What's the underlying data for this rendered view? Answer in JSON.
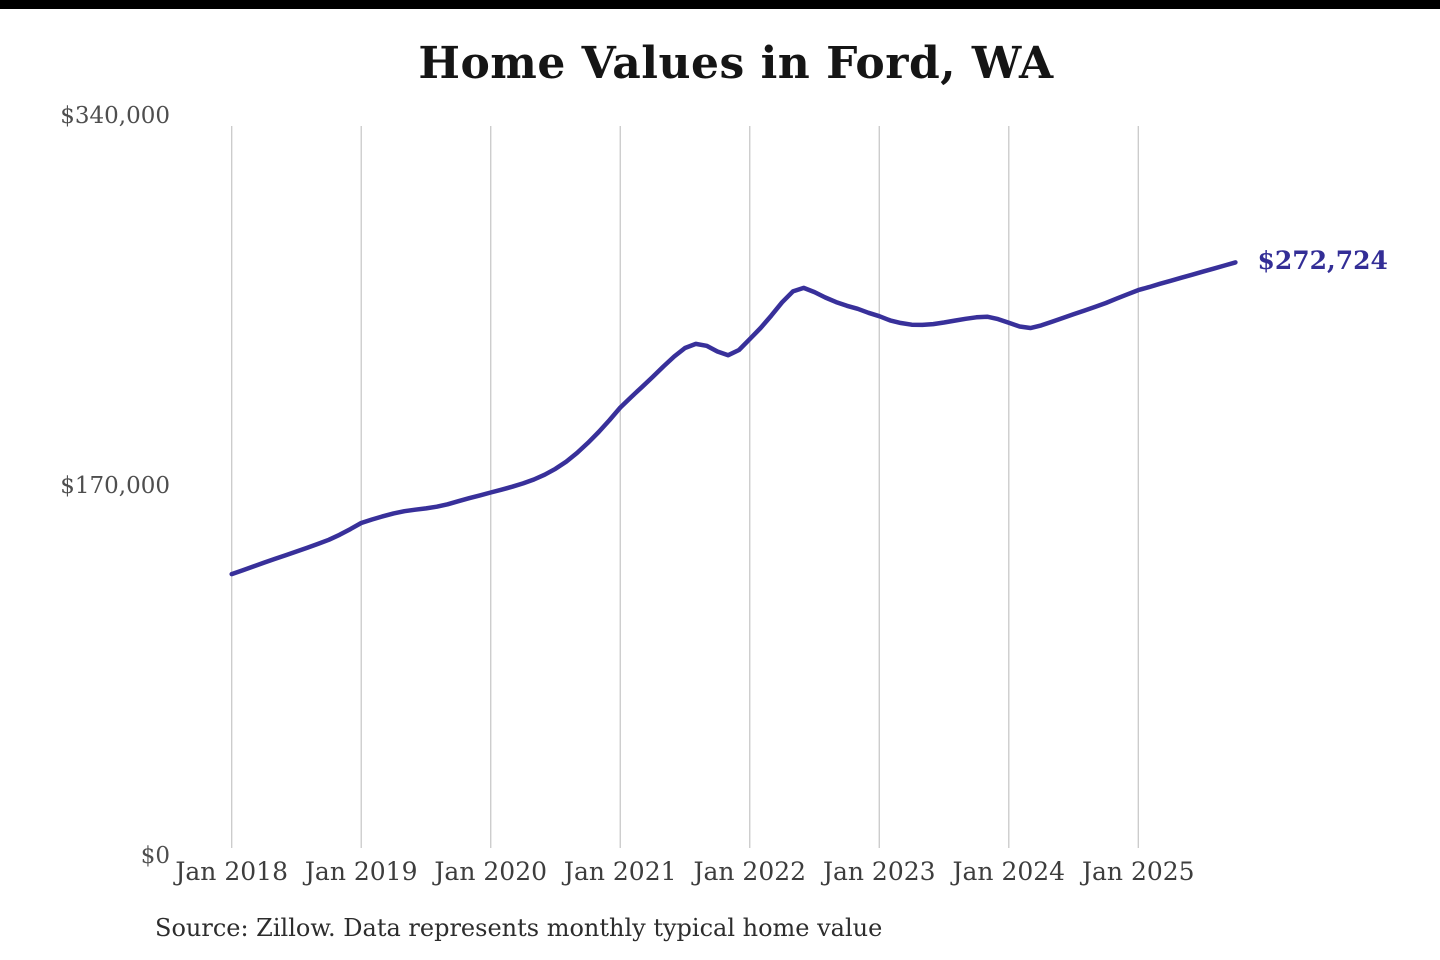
{
  "page": {
    "title": "Home Values in Ford, WA",
    "source_note": "Source: Zillow. Data represents monthly typical home value"
  },
  "colors": {
    "line": "#38309a",
    "end_label": "#332e96",
    "grid": "#c9c9c9",
    "title": "#151515",
    "axis_text": "#4e4e4e",
    "source_text": "#2d2d2d",
    "top_bar": "#000000",
    "background": "#ffffff"
  },
  "chart_data": {
    "type": "line",
    "title": "Home Values in Ford, WA",
    "series_name": "Monthly typical home value",
    "legend": "none",
    "grid": "vertical-only",
    "ylim": [
      0,
      340000
    ],
    "y_ticks": [
      0,
      170000,
      340000
    ],
    "y_tick_labels": [
      "$0",
      "$170,000",
      "$340,000"
    ],
    "x_tick_labels": [
      "Jan 2018",
      "Jan 2019",
      "Jan 2020",
      "Jan 2021",
      "Jan 2022",
      "Jan 2023",
      "Jan 2024",
      "Jan 2025"
    ],
    "months_per_tick": 12,
    "x": [
      "2018-01",
      "2018-02",
      "2018-03",
      "2018-04",
      "2018-05",
      "2018-06",
      "2018-07",
      "2018-08",
      "2018-09",
      "2018-10",
      "2018-11",
      "2018-12",
      "2019-01",
      "2019-02",
      "2019-03",
      "2019-04",
      "2019-05",
      "2019-06",
      "2019-07",
      "2019-08",
      "2019-09",
      "2019-10",
      "2019-11",
      "2019-12",
      "2020-01",
      "2020-02",
      "2020-03",
      "2020-04",
      "2020-05",
      "2020-06",
      "2020-07",
      "2020-08",
      "2020-09",
      "2020-10",
      "2020-11",
      "2020-12",
      "2021-01",
      "2021-02",
      "2021-03",
      "2021-04",
      "2021-05",
      "2021-06",
      "2021-07",
      "2021-08",
      "2021-09",
      "2021-10",
      "2021-11",
      "2021-12",
      "2022-01",
      "2022-02",
      "2022-03",
      "2022-04",
      "2022-05",
      "2022-06",
      "2022-07",
      "2022-08",
      "2022-09",
      "2022-10",
      "2022-11",
      "2022-12",
      "2023-01",
      "2023-02",
      "2023-03",
      "2023-04",
      "2023-05",
      "2023-06",
      "2023-07",
      "2023-08",
      "2023-09",
      "2023-10",
      "2023-11",
      "2023-12",
      "2024-01",
      "2024-02",
      "2024-03",
      "2024-04",
      "2024-05",
      "2024-06",
      "2024-07",
      "2024-08",
      "2024-09",
      "2024-10",
      "2024-11",
      "2024-12",
      "2025-01",
      "2025-02",
      "2025-03",
      "2025-04",
      "2025-05",
      "2025-06",
      "2025-07",
      "2025-08",
      "2025-09",
      "2025-10"
    ],
    "values": [
      129500,
      131200,
      133000,
      134800,
      136500,
      138200,
      139900,
      141600,
      143400,
      145300,
      147600,
      150200,
      153000,
      154600,
      156100,
      157400,
      158400,
      159100,
      159700,
      160500,
      161600,
      163000,
      164400,
      165700,
      167000,
      168300,
      169700,
      171200,
      173000,
      175200,
      177900,
      181200,
      185200,
      189800,
      194800,
      200300,
      206000,
      210800,
      215400,
      220100,
      224900,
      229500,
      233400,
      235300,
      234400,
      231800,
      230100,
      232500,
      237500,
      242600,
      248300,
      254400,
      259400,
      261000,
      259100,
      256600,
      254500,
      252800,
      251400,
      249600,
      248000,
      246100,
      244900,
      244100,
      244000,
      244400,
      245100,
      246000,
      246800,
      247500,
      247800,
      246700,
      245000,
      243300,
      242600,
      243800,
      245500,
      247200,
      248900,
      250600,
      252300,
      254100,
      256100,
      258100,
      260000,
      261400,
      262900,
      264300,
      265700,
      267100,
      268500,
      269900,
      271300,
      272724
    ],
    "end_annotation": {
      "text": "$272,724",
      "value": 272724,
      "x": "2025-10"
    }
  }
}
